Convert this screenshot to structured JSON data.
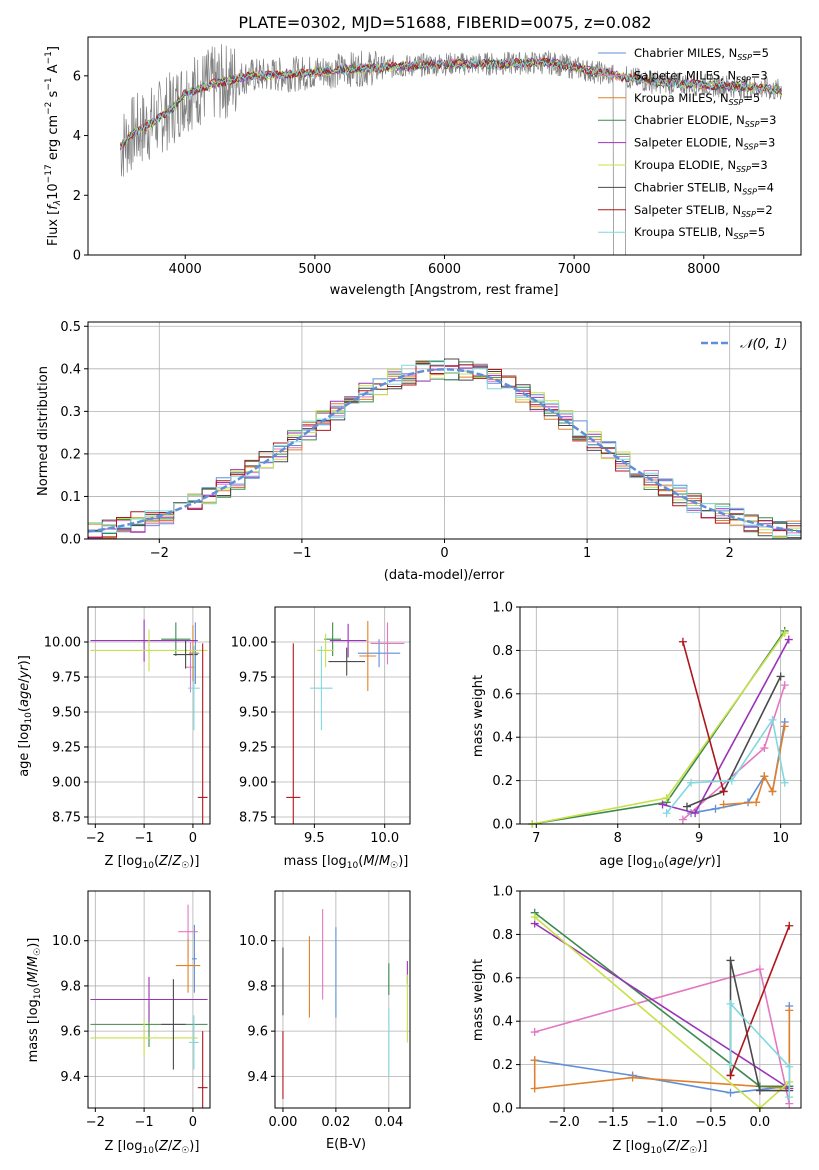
{
  "title": "PLATE=0302, MJD=51688, FIBERID=0075, z=0.082",
  "palette": {
    "Chabrier MILES": "#5f8fd8",
    "Salpeter MILES": "#e377c2",
    "Kroupa MILES": "#e1802a",
    "Chabrier ELODIE": "#3d8a4e",
    "Salpeter ELODIE": "#9a33b8",
    "Kroupa ELODIE": "#c8e04a",
    "Chabrier STELIB": "#4a4a4a",
    "Salpeter STELIB": "#b0151b",
    "Kroupa STELIB": "#7fd9de",
    "data": "#808080",
    "gaussian": "#5f8fd8",
    "grid": "#b0b0b0"
  },
  "chart_data": [
    {
      "type": "line",
      "id": "spectrum",
      "xlabel": "wavelength [Angstrom, rest frame]",
      "ylabel": "Flux [f_λ 10^-17 erg cm^-2 s^-1 A^-1]",
      "xlim": [
        3250,
        8750
      ],
      "ylim": [
        0,
        7.3
      ],
      "xticks": [
        4000,
        5000,
        6000,
        7000,
        8000
      ],
      "yticks": [
        0,
        2,
        4,
        6
      ],
      "legend_position": "top-right",
      "grid": false,
      "continuum": [
        [
          3500,
          3.6
        ],
        [
          3600,
          4.1
        ],
        [
          3700,
          4.3
        ],
        [
          3800,
          4.6
        ],
        [
          3900,
          4.9
        ],
        [
          4000,
          5.4
        ],
        [
          4200,
          5.7
        ],
        [
          4500,
          6.0
        ],
        [
          4800,
          6.05
        ],
        [
          5200,
          6.2
        ],
        [
          5600,
          6.3
        ],
        [
          6000,
          6.4
        ],
        [
          6400,
          6.4
        ],
        [
          6800,
          6.45
        ],
        [
          7200,
          6.1
        ],
        [
          7600,
          5.8
        ],
        [
          8000,
          5.7
        ],
        [
          8400,
          5.6
        ],
        [
          8600,
          5.5
        ]
      ],
      "series": [
        {
          "name": "Chabrier MILES",
          "nssp": "5"
        },
        {
          "name": "Salpeter MILES",
          "nssp": "3"
        },
        {
          "name": "Kroupa MILES",
          "nssp": "5"
        },
        {
          "name": "Chabrier ELODIE",
          "nssp": "3"
        },
        {
          "name": "Salpeter ELODIE",
          "nssp": "3"
        },
        {
          "name": "Kroupa ELODIE",
          "nssp": "3"
        },
        {
          "name": "Chabrier STELIB",
          "nssp": "4"
        },
        {
          "name": "Salpeter STELIB",
          "nssp": "2"
        },
        {
          "name": "Kroupa STELIB",
          "nssp": "5"
        }
      ]
    },
    {
      "type": "bar",
      "id": "residuals",
      "xlabel": "(data-model)/error",
      "ylabel": "Normed distribution",
      "xlim": [
        -2.5,
        2.5
      ],
      "ylim": [
        0,
        0.51
      ],
      "xticks": [
        -2,
        -1,
        0,
        1,
        2
      ],
      "yticks": [
        0.0,
        0.1,
        0.2,
        0.3,
        0.4,
        0.5
      ],
      "grid": true,
      "legend_position": "top-right",
      "gaussian_label": "𝒩(0, 1)",
      "bin_width": 0.1
    },
    {
      "type": "scatter",
      "id": "age-vs-Z",
      "xlabel": "Z [log10(Z/Z☉)]",
      "ylabel": "age  [log10(age/yr)]",
      "xlim": [
        -2.15,
        0.35
      ],
      "ylim": [
        8.7,
        10.25
      ],
      "xticks": [
        -2,
        -1,
        0
      ],
      "yticks": [
        8.75,
        9.0,
        9.25,
        9.5,
        9.75,
        10.0
      ],
      "grid": true,
      "points": [
        {
          "series": "Chabrier MILES",
          "x": 0.05,
          "y": 9.92,
          "xerr": 0.08,
          "yerr": 0.22
        },
        {
          "series": "Salpeter MILES",
          "x": -0.05,
          "y": 9.82,
          "xerr": 0.1,
          "yerr": 0.18
        },
        {
          "series": "Kroupa MILES",
          "x": 0.0,
          "y": 9.92,
          "xerr": 0.08,
          "yerr": 0.2
        },
        {
          "series": "Chabrier ELODIE",
          "x": -0.35,
          "y": 10.02,
          "xerr": 0.3,
          "yerr": 0.12
        },
        {
          "series": "Salpeter ELODIE",
          "x": -1.0,
          "y": 10.01,
          "xerr": 1.1,
          "yerr": 0.15
        },
        {
          "series": "Kroupa ELODIE",
          "x": -0.9,
          "y": 9.94,
          "xerr": 1.2,
          "yerr": 0.15
        },
        {
          "series": "Chabrier STELIB",
          "x": -0.15,
          "y": 9.91,
          "xerr": 0.25,
          "yerr": 0.1
        },
        {
          "series": "Salpeter STELIB",
          "x": 0.2,
          "y": 8.89,
          "xerr": 0.1,
          "yerr": 1.1
        },
        {
          "series": "Kroupa STELIB",
          "x": 0.02,
          "y": 9.67,
          "xerr": 0.12,
          "yerr": 0.3
        }
      ]
    },
    {
      "type": "scatter",
      "id": "age-vs-mass",
      "xlabel": "mass [log10(M/M☉)]",
      "ylabel": "",
      "xlim": [
        9.22,
        10.18
      ],
      "ylim": [
        8.7,
        10.25
      ],
      "xticks": [
        9.5,
        10.0
      ],
      "yticks": [
        8.75,
        9.0,
        9.25,
        9.5,
        9.75,
        10.0
      ],
      "grid": true,
      "points": [
        {
          "series": "Chabrier MILES",
          "x": 9.96,
          "y": 9.92,
          "xerr": 0.15,
          "yerr": 0.1
        },
        {
          "series": "Salpeter MILES",
          "x": 10.02,
          "y": 9.99,
          "xerr": 0.12,
          "yerr": 0.15
        },
        {
          "series": "Kroupa MILES",
          "x": 9.88,
          "y": 9.9,
          "xerr": 0.06,
          "yerr": 0.25
        },
        {
          "series": "Chabrier ELODIE",
          "x": 9.63,
          "y": 10.02,
          "xerr": 0.06,
          "yerr": 0.12
        },
        {
          "series": "Salpeter ELODIE",
          "x": 9.74,
          "y": 10.01,
          "xerr": 0.13,
          "yerr": 0.12
        },
        {
          "series": "Kroupa ELODIE",
          "x": 9.58,
          "y": 9.94,
          "xerr": 0.06,
          "yerr": 0.12
        },
        {
          "series": "Chabrier STELIB",
          "x": 9.73,
          "y": 9.86,
          "xerr": 0.13,
          "yerr": 0.1
        },
        {
          "series": "Salpeter STELIB",
          "x": 9.35,
          "y": 8.89,
          "xerr": 0.05,
          "yerr": 1.1
        },
        {
          "series": "Kroupa STELIB",
          "x": 9.55,
          "y": 9.67,
          "xerr": 0.08,
          "yerr": 0.3
        }
      ]
    },
    {
      "type": "line",
      "id": "massweight-vs-age",
      "xlabel": "age  [log10(age/yr)]",
      "ylabel": "mass weight",
      "xlim": [
        6.8,
        10.25
      ],
      "ylim": [
        0,
        1.0
      ],
      "xticks": [
        7,
        8,
        9,
        10
      ],
      "yticks": [
        0.0,
        0.2,
        0.4,
        0.6,
        0.8,
        1.0
      ],
      "grid": true,
      "series": [
        {
          "name": "Chabrier MILES",
          "x": [
            8.9,
            9.2,
            9.6,
            9.8,
            9.9,
            10.05
          ],
          "y": [
            0.05,
            0.07,
            0.1,
            0.22,
            0.15,
            0.47
          ]
        },
        {
          "name": "Salpeter MILES",
          "x": [
            8.8,
            9.8,
            10.05
          ],
          "y": [
            0.02,
            0.35,
            0.64
          ]
        },
        {
          "name": "Kroupa MILES",
          "x": [
            9.3,
            9.7,
            9.8,
            9.9,
            10.05
          ],
          "y": [
            0.09,
            0.1,
            0.22,
            0.15,
            0.45
          ]
        },
        {
          "name": "Chabrier ELODIE",
          "x": [
            6.95,
            8.6,
            10.05
          ],
          "y": [
            0.0,
            0.1,
            0.89
          ]
        },
        {
          "name": "Salpeter ELODIE",
          "x": [
            8.55,
            8.95,
            10.1
          ],
          "y": [
            0.09,
            0.05,
            0.85
          ]
        },
        {
          "name": "Kroupa ELODIE",
          "x": [
            6.95,
            8.6,
            10.05
          ],
          "y": [
            0.0,
            0.12,
            0.88
          ]
        },
        {
          "name": "Chabrier STELIB",
          "x": [
            8.85,
            9.3,
            10.0
          ],
          "y": [
            0.08,
            0.15,
            0.68
          ]
        },
        {
          "name": "Salpeter STELIB",
          "x": [
            8.8,
            9.3
          ],
          "y": [
            0.84,
            0.15
          ]
        },
        {
          "name": "Kroupa STELIB",
          "x": [
            8.6,
            8.9,
            9.4,
            9.9,
            10.05
          ],
          "y": [
            0.05,
            0.19,
            0.2,
            0.48,
            0.19
          ]
        }
      ]
    },
    {
      "type": "scatter",
      "id": "mass-vs-Z",
      "xlabel": "Z [log10(Z/Z☉)]",
      "ylabel": "mass [log10(M/M☉)]",
      "xlim": [
        -2.15,
        0.35
      ],
      "ylim": [
        9.26,
        10.22
      ],
      "xticks": [
        -2,
        -1,
        0
      ],
      "yticks": [
        9.4,
        9.6,
        9.8,
        10.0
      ],
      "grid": true,
      "points": [
        {
          "series": "Chabrier MILES",
          "x": 0.03,
          "y": 9.92,
          "xerr": 0.05,
          "yerr": 0.15
        },
        {
          "series": "Salpeter MILES",
          "x": -0.1,
          "y": 10.04,
          "xerr": 0.2,
          "yerr": 0.12
        },
        {
          "series": "Kroupa MILES",
          "x": -0.1,
          "y": 9.89,
          "xerr": 0.25,
          "yerr": 0.12
        },
        {
          "series": "Chabrier ELODIE",
          "x": -0.9,
          "y": 9.63,
          "xerr": 1.2,
          "yerr": 0.1
        },
        {
          "series": "Salpeter ELODIE",
          "x": -0.9,
          "y": 9.74,
          "xerr": 1.2,
          "yerr": 0.1
        },
        {
          "series": "Kroupa ELODIE",
          "x": -1.0,
          "y": 9.57,
          "xerr": 1.1,
          "yerr": 0.08
        },
        {
          "series": "Chabrier STELIB",
          "x": -0.4,
          "y": 9.63,
          "xerr": 0.25,
          "yerr": 0.2
        },
        {
          "series": "Salpeter STELIB",
          "x": 0.2,
          "y": 9.35,
          "xerr": 0.1,
          "yerr": 0.25
        },
        {
          "series": "Kroupa STELIB",
          "x": 0.02,
          "y": 9.55,
          "xerr": 0.1,
          "yerr": 0.12
        }
      ]
    },
    {
      "type": "scatter",
      "id": "mass-vs-ebv",
      "xlabel": "E(B-V)",
      "ylabel": "",
      "xlim": [
        -0.003,
        0.048
      ],
      "ylim": [
        9.26,
        10.22
      ],
      "xticks": [
        0.0,
        0.02,
        0.04
      ],
      "yticks": [
        9.4,
        9.6,
        9.8,
        10.0
      ],
      "grid": true,
      "points": [
        {
          "series": "Chabrier MILES",
          "x": 0.02,
          "y": 9.86,
          "yerr": 0.2
        },
        {
          "series": "Salpeter MILES",
          "x": 0.015,
          "y": 9.94,
          "yerr": 0.2
        },
        {
          "series": "Kroupa MILES",
          "x": 0.01,
          "y": 9.84,
          "yerr": 0.18
        },
        {
          "series": "Chabrier ELODIE",
          "x": 0.04,
          "y": 9.83,
          "yerr": 0.07
        },
        {
          "series": "Salpeter ELODIE",
          "x": 0.047,
          "y": 9.86,
          "yerr": 0.05
        },
        {
          "series": "Kroupa ELODIE",
          "x": 0.047,
          "y": 9.7,
          "yerr": 0.15
        },
        {
          "series": "Chabrier STELIB",
          "x": 0.0,
          "y": 9.82,
          "yerr": 0.15
        },
        {
          "series": "Salpeter STELIB",
          "x": 0.0,
          "y": 9.45,
          "yerr": 0.15
        },
        {
          "series": "Kroupa STELIB",
          "x": 0.04,
          "y": 9.55,
          "yerr": 0.15
        }
      ]
    },
    {
      "type": "line",
      "id": "massweight-vs-Z",
      "xlabel": "Z [log10(Z/Z☉)]",
      "ylabel": "mass weight",
      "xlim": [
        -2.45,
        0.42
      ],
      "ylim": [
        0,
        1.0
      ],
      "xticks": [
        -2.0,
        -1.5,
        -1.0,
        -0.5,
        0.0
      ],
      "yticks": [
        0.0,
        0.2,
        0.4,
        0.6,
        0.8,
        1.0
      ],
      "grid": true,
      "series": [
        {
          "name": "Chabrier MILES",
          "x": [
            -2.3,
            -1.3,
            -0.3,
            0.3,
            0.3
          ],
          "y": [
            0.22,
            0.15,
            0.07,
            0.1,
            0.47
          ]
        },
        {
          "name": "Salpeter MILES",
          "x": [
            -2.3,
            0.0,
            0.3
          ],
          "y": [
            0.35,
            0.64,
            0.02
          ]
        },
        {
          "name": "Kroupa MILES",
          "x": [
            -2.3,
            -2.3,
            -1.3,
            0.3,
            0.3
          ],
          "y": [
            0.22,
            0.09,
            0.14,
            0.09,
            0.45
          ]
        },
        {
          "name": "Chabrier ELODIE",
          "x": [
            -2.3,
            0.0,
            0.3
          ],
          "y": [
            0.9,
            0.1,
            0.1
          ]
        },
        {
          "name": "Salpeter ELODIE",
          "x": [
            -2.3,
            0.3
          ],
          "y": [
            0.85,
            0.09
          ]
        },
        {
          "name": "Kroupa ELODIE",
          "x": [
            -2.3,
            0.0,
            0.3
          ],
          "y": [
            0.88,
            0.0,
            0.12
          ]
        },
        {
          "name": "Chabrier STELIB",
          "x": [
            -0.3,
            -0.3,
            0.0,
            0.3
          ],
          "y": [
            0.15,
            0.68,
            0.08,
            0.08
          ]
        },
        {
          "name": "Salpeter STELIB",
          "x": [
            -0.3,
            0.3
          ],
          "y": [
            0.15,
            0.84
          ]
        },
        {
          "name": "Kroupa STELIB",
          "x": [
            -0.3,
            -0.3,
            0.3,
            0.3
          ],
          "y": [
            0.2,
            0.48,
            0.19,
            0.05
          ]
        }
      ]
    }
  ]
}
